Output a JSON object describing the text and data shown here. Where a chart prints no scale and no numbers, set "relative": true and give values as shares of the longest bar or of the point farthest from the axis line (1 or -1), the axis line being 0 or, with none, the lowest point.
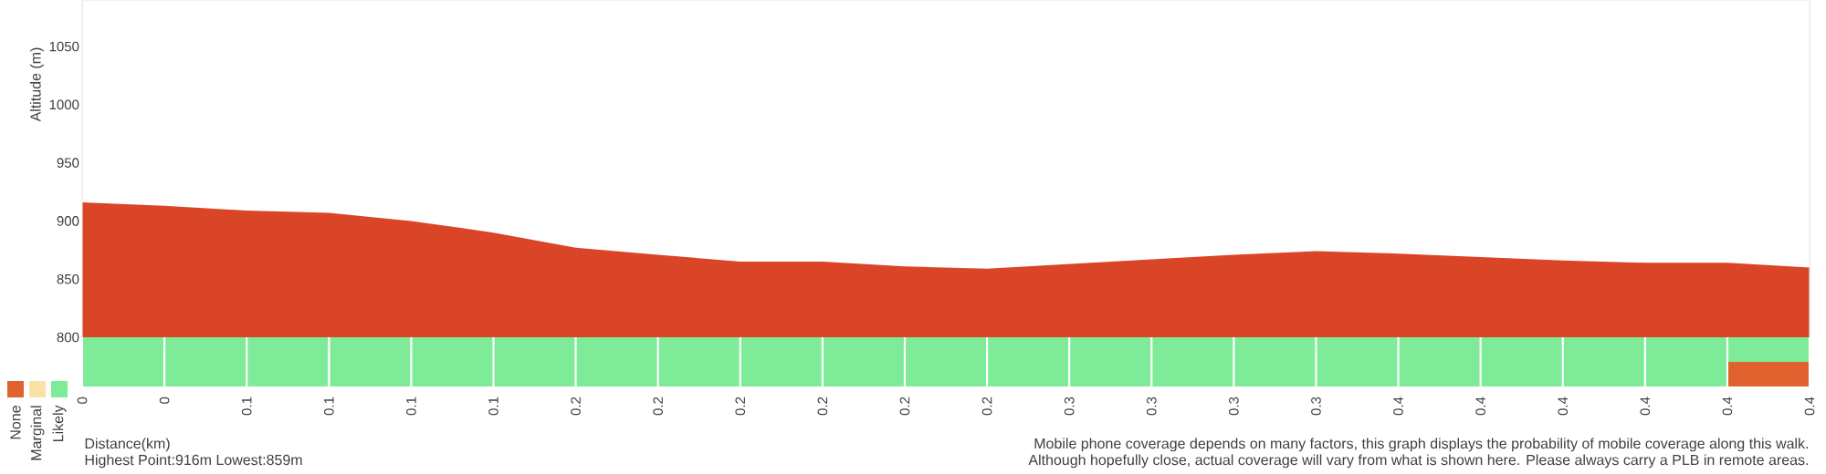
{
  "chart_data": [
    {
      "type": "area",
      "ylabel": "Altitude (m)",
      "xlabel": "Distance(km)",
      "categories": [
        "0",
        "0",
        "0.1",
        "0.1",
        "0.1",
        "0.1",
        "0.2",
        "0.2",
        "0.2",
        "0.2",
        "0.2",
        "0.2",
        "0.3",
        "0.3",
        "0.3",
        "0.3",
        "0.4",
        "0.4",
        "0.4",
        "0.4",
        "0.4",
        "0.4"
      ],
      "values": [
        916,
        913,
        909,
        907,
        900,
        890,
        877,
        871,
        865,
        865,
        861,
        859,
        863,
        867,
        871,
        874,
        872,
        869,
        866,
        864,
        864,
        860
      ],
      "color": "#d94526",
      "ylim": [
        800,
        1090
      ],
      "yticks": [
        800,
        850,
        900,
        950,
        1000,
        1050
      ],
      "annotations": [
        "Highest Point:916m Lowest:859m",
        "Mobile phone coverage depends on many factors, this graph displays the probability of mobile coverage along this walk.",
        "Although hopefully close, actual coverage will vary from what is shown here. Please always carry a PLB in remote areas."
      ]
    },
    {
      "type": "bar",
      "stacked": true,
      "relative": true,
      "legend": "left",
      "categories": [
        null,
        null,
        null,
        null,
        null,
        null,
        null,
        null,
        null,
        null,
        null,
        null,
        null,
        null,
        null,
        null,
        null,
        null,
        null,
        null,
        null
      ],
      "series": [
        {
          "name": "None",
          "color": "#e0622e",
          "values": [
            0,
            0,
            0,
            0,
            0,
            0,
            0,
            0,
            0,
            0,
            0,
            0,
            0,
            0,
            0,
            0,
            0,
            0,
            0,
            0,
            0.5
          ]
        },
        {
          "name": "Marginal",
          "color": "#fbe0a8",
          "values": [
            0,
            0,
            0,
            0,
            0,
            0,
            0,
            0,
            0,
            0,
            0,
            0,
            0,
            0,
            0,
            0,
            0,
            0,
            0,
            0,
            0
          ]
        },
        {
          "name": "Likely",
          "color": "#7deb98",
          "values": [
            1,
            1,
            1,
            1,
            1,
            1,
            1,
            1,
            1,
            1,
            1,
            1,
            1,
            1,
            1,
            1,
            1,
            1,
            1,
            1,
            0.5
          ]
        }
      ]
    }
  ]
}
